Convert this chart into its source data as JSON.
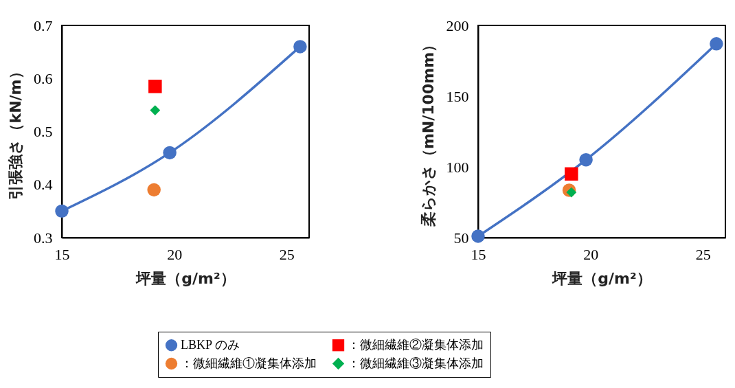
{
  "chart_data": [
    {
      "type": "scatter",
      "xlabel": "坪量（g/m²）",
      "ylabel": "引張強さ（kN/m）",
      "xlim": [
        15,
        26
      ],
      "xticks": [
        15,
        20,
        25
      ],
      "ylim": [
        0.3,
        0.7
      ],
      "yticks": [
        0.3,
        0.4,
        0.5,
        0.6,
        0.7
      ],
      "grid": false,
      "legend": "bottom",
      "series": [
        {
          "name": "LBKP のみ",
          "type": "line",
          "marker": "circle",
          "color": "#4472c4",
          "x": [
            15,
            19.8,
            25.6
          ],
          "values": [
            0.35,
            0.46,
            0.66
          ]
        },
        {
          "name": "：微細繊維①凝集体添加",
          "type": "scatter",
          "marker": "circle",
          "color": "#ed7d31",
          "x": [
            19.1
          ],
          "values": [
            0.39
          ]
        },
        {
          "name": "：微細繊維②凝集体添加",
          "type": "scatter",
          "marker": "square",
          "color": "#ff0000",
          "x": [
            19.15
          ],
          "values": [
            0.585
          ]
        },
        {
          "name": "：微細繊維③凝集体添加",
          "type": "scatter",
          "marker": "diamond",
          "color": "#00b050",
          "x": [
            19.15
          ],
          "values": [
            0.54
          ]
        }
      ]
    },
    {
      "type": "scatter",
      "xlabel": "坪量（g/m²）",
      "ylabel": "柔らかさ（mN/100mm）",
      "xlim": [
        15,
        26
      ],
      "xticks": [
        15,
        20,
        25
      ],
      "ylim": [
        50,
        200
      ],
      "yticks": [
        50,
        100,
        150,
        200
      ],
      "grid": false,
      "legend": "bottom",
      "series": [
        {
          "name": "LBKP のみ",
          "type": "line",
          "marker": "circle",
          "color": "#4472c4",
          "x": [
            15,
            19.8,
            25.6
          ],
          "values": [
            51,
            105,
            187
          ]
        },
        {
          "name": "：微細繊維①凝集体添加",
          "type": "scatter",
          "marker": "circle",
          "color": "#ed7d31",
          "x": [
            19.05
          ],
          "values": [
            83.5
          ]
        },
        {
          "name": "：微細繊維②凝集体添加",
          "type": "scatter",
          "marker": "square",
          "color": "#ff0000",
          "x": [
            19.15
          ],
          "values": [
            95
          ]
        },
        {
          "name": "：微細繊維③凝集体添加",
          "type": "scatter",
          "marker": "diamond",
          "color": "#00b050",
          "x": [
            19.15
          ],
          "values": [
            82
          ]
        }
      ]
    }
  ]
}
